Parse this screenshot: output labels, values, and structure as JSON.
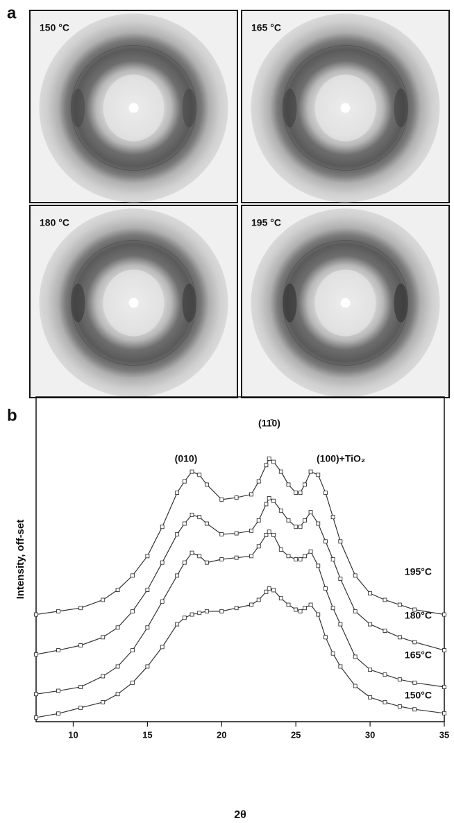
{
  "figure": {
    "panel_a": {
      "label": "a",
      "images": [
        {
          "label": "150 °C"
        },
        {
          "label": "165 °C"
        },
        {
          "label": "180 °C"
        },
        {
          "label": "195 °C"
        }
      ]
    }
  },
  "chart_data": {
    "type": "line",
    "panel_label": "b",
    "x_label": "2θ",
    "y_label": "Intensity, off-set",
    "xlim": [
      7.5,
      35
    ],
    "xticks": [
      10,
      15,
      20,
      25,
      30,
      35
    ],
    "ylim": [
      0,
      100
    ],
    "annotations": [
      "(010)",
      "(11̄0)",
      "(100)+TiO₂"
    ],
    "x": [
      7.5,
      9,
      10.5,
      12,
      13,
      14,
      15,
      16,
      17,
      17.5,
      18,
      18.5,
      19,
      20,
      21,
      22,
      22.5,
      23,
      23.2,
      23.5,
      24,
      24.5,
      25,
      25.3,
      25.6,
      26,
      26.5,
      27,
      27.5,
      28,
      29,
      30,
      31,
      32,
      33,
      35
    ],
    "series": [
      {
        "name": "150°C",
        "color": "#333333",
        "values": [
          1.3,
          2.5,
          4.3,
          6,
          8.5,
          12,
          17,
          23,
          30,
          32,
          33,
          33.5,
          34,
          34,
          35,
          36,
          37.5,
          40,
          41,
          40.5,
          38,
          36,
          34.5,
          34,
          35,
          36,
          33,
          26,
          21,
          17,
          11,
          7.5,
          6,
          4.7,
          3.8,
          2.6
        ]
      },
      {
        "name": "165°C",
        "color": "#333333",
        "values": [
          8.5,
          9.5,
          10.7,
          14,
          17,
          22,
          29,
          37,
          45,
          49,
          52,
          51,
          49,
          50,
          50.5,
          51,
          54,
          57.5,
          58.5,
          57.5,
          53,
          51,
          50,
          50,
          51,
          52.4,
          48,
          41,
          35,
          30,
          20,
          16,
          14.5,
          13,
          12,
          10.7
        ]
      },
      {
        "name": "180°C",
        "color": "#333333",
        "values": [
          20.7,
          22,
          23.5,
          26,
          29,
          34,
          40.6,
          49,
          57.7,
          61,
          63.7,
          63,
          61,
          57.7,
          58,
          58.8,
          62,
          67,
          68.8,
          68,
          65,
          62,
          60,
          60,
          62,
          64.5,
          61,
          55.5,
          50,
          44,
          34,
          30,
          28,
          26,
          24.5,
          22
        ]
      },
      {
        "name": "195°C",
        "color": "#333333",
        "values": [
          33,
          34,
          35,
          37.5,
          40.6,
          45,
          51,
          60,
          70.5,
          74,
          77,
          76,
          73,
          68.4,
          69,
          70,
          74,
          79,
          81,
          80,
          77,
          73,
          70.5,
          70.5,
          73,
          77,
          76,
          70.5,
          63,
          55.5,
          45,
          39.5,
          37.5,
          36,
          34.5,
          33
        ]
      }
    ]
  }
}
